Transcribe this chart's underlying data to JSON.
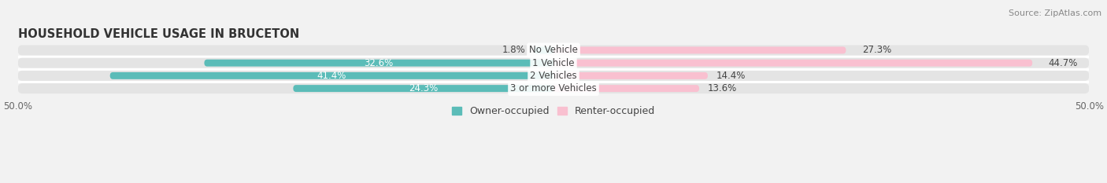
{
  "title": "HOUSEHOLD VEHICLE USAGE IN BRUCETON",
  "source": "Source: ZipAtlas.com",
  "categories": [
    "No Vehicle",
    "1 Vehicle",
    "2 Vehicles",
    "3 or more Vehicles"
  ],
  "owner_values": [
    1.8,
    32.6,
    41.4,
    24.3
  ],
  "renter_values": [
    27.3,
    44.7,
    14.4,
    13.6
  ],
  "owner_color": "#5bbcb8",
  "renter_color": "#f799b4",
  "renter_color_light": "#f9c0d0",
  "background_color": "#f2f2f2",
  "bar_bg_color": "#e4e4e4",
  "xlim": [
    -50,
    50
  ],
  "bar_height": 0.55,
  "title_fontsize": 10.5,
  "source_fontsize": 8,
  "label_fontsize": 8.5,
  "legend_fontsize": 9,
  "category_fontsize": 8.5
}
